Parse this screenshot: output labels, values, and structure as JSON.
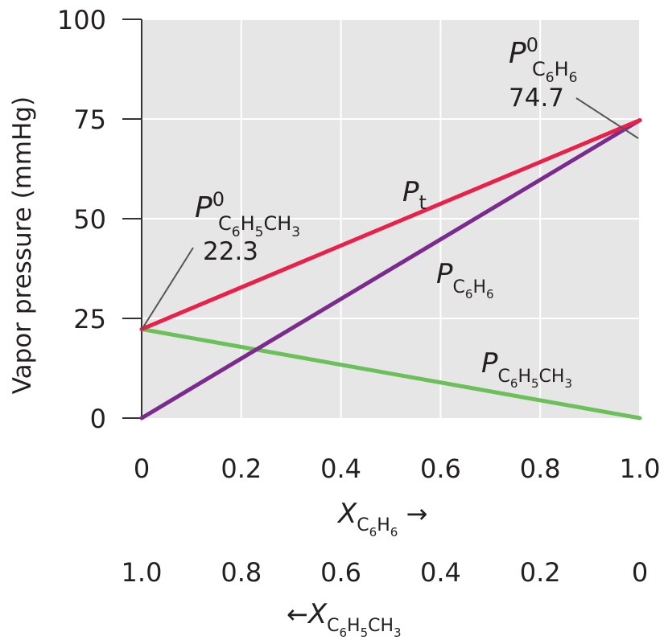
{
  "chart_data": {
    "type": "line",
    "ylabel": "Vapor pressure (mmHg)",
    "ylim": [
      0,
      100
    ],
    "xlim": [
      0,
      1.0
    ],
    "grid": true,
    "y_ticks": [
      "0",
      "25",
      "50",
      "75",
      "100"
    ],
    "y_tick_values": [
      0,
      25,
      50,
      75,
      100
    ],
    "x_ticks_benzene": [
      "0",
      "0.2",
      "0.4",
      "0.6",
      "0.8",
      "1.0"
    ],
    "x_ticks_toluene": [
      "1.0",
      "0.8",
      "0.6",
      "0.4",
      "0.2",
      "0"
    ],
    "x_tick_values": [
      0,
      0.2,
      0.4,
      0.6,
      0.8,
      1.0
    ],
    "xlabel_benzene": {
      "arrow": "→"
    },
    "xlabel_toluene": {
      "arrow": "←"
    },
    "series": [
      {
        "name": "Pt",
        "color": "#e8214b",
        "x": [
          0,
          1.0
        ],
        "y": [
          22.3,
          74.7
        ]
      },
      {
        "name": "P C6H6",
        "color": "#7b2a8e",
        "x": [
          0,
          1.0
        ],
        "y": [
          0,
          74.7
        ]
      },
      {
        "name": "P C6H5CH3",
        "color": "#6cc05a",
        "x": [
          0,
          1.0
        ],
        "y": [
          22.3,
          0
        ]
      }
    ],
    "annotations": [
      {
        "label": "P0 C6H5CH3",
        "value": "22.3",
        "x": 0,
        "y": 22.3
      },
      {
        "label": "P0 C6H6",
        "value": "74.7",
        "x": 1.0,
        "y": 74.7
      }
    ],
    "colors": {
      "plot_bg": "#e6e6e6",
      "grid": "#ffffff",
      "axis": "#333333",
      "text": "#231f20"
    }
  }
}
